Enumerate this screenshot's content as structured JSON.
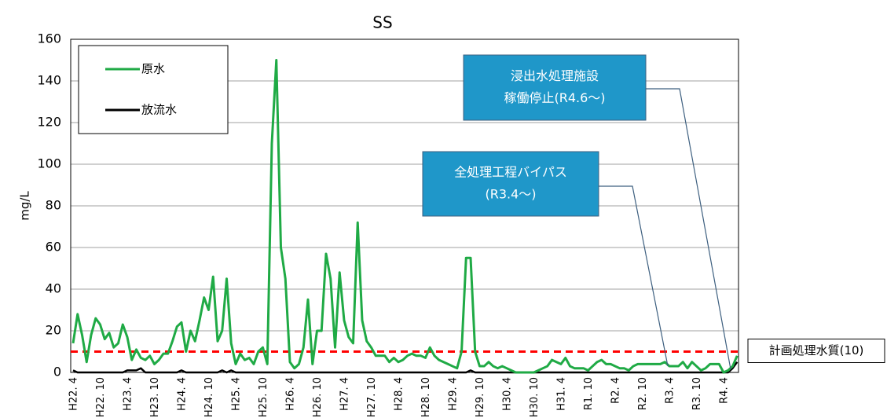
{
  "chart_data": {
    "type": "line",
    "title": "SS",
    "ylabel": "mg/L",
    "categories": [
      "H22. 4",
      null,
      null,
      null,
      null,
      null,
      "H22. 10",
      null,
      null,
      null,
      null,
      null,
      "H23. 4",
      null,
      null,
      null,
      null,
      null,
      "H23. 10",
      null,
      null,
      null,
      null,
      null,
      "H24. 4",
      null,
      null,
      null,
      null,
      null,
      "H24. 10",
      null,
      null,
      null,
      null,
      null,
      "H25. 4",
      null,
      null,
      null,
      null,
      null,
      "H25. 10",
      null,
      null,
      null,
      null,
      null,
      "H26. 4",
      null,
      null,
      null,
      null,
      null,
      "H26. 10",
      null,
      null,
      null,
      null,
      null,
      "H27. 4",
      null,
      null,
      null,
      null,
      null,
      "H27. 10",
      null,
      null,
      null,
      null,
      null,
      "H28. 4",
      null,
      null,
      null,
      null,
      null,
      "H28. 10",
      null,
      null,
      null,
      null,
      null,
      "H29. 4",
      null,
      null,
      null,
      null,
      null,
      "H29. 10",
      null,
      null,
      null,
      null,
      null,
      "H30. 4",
      null,
      null,
      null,
      null,
      null,
      "H30. 10",
      null,
      null,
      null,
      null,
      null,
      "H31. 4",
      null,
      null,
      null,
      null,
      null,
      "R1. 10",
      null,
      null,
      null,
      null,
      null,
      "R2. 4",
      null,
      null,
      null,
      null,
      null,
      "R2. 10",
      null,
      null,
      null,
      null,
      null,
      "R3. 4",
      null,
      null,
      null,
      null,
      null,
      "R3. 10",
      null,
      null,
      null,
      null,
      null,
      "R4. 4",
      null,
      null,
      null
    ],
    "series": [
      {
        "name": "原水",
        "color": "#1faa45",
        "values": [
          14,
          28,
          18,
          5,
          18,
          26,
          23,
          16,
          19,
          12,
          14,
          23,
          17,
          6,
          11,
          7,
          6,
          8,
          4,
          6,
          9,
          9,
          15,
          22,
          24,
          10,
          20,
          15,
          25,
          36,
          30,
          46,
          15,
          20,
          45,
          14,
          4,
          9,
          6,
          7,
          4,
          10,
          12,
          4,
          110,
          150,
          60,
          45,
          5,
          2,
          4,
          12,
          35,
          4,
          20,
          20,
          57,
          45,
          12,
          48,
          25,
          17,
          14,
          72,
          25,
          15,
          12,
          8,
          8,
          8,
          5,
          7,
          5,
          6,
          8,
          9,
          8,
          8,
          7,
          12,
          8,
          6,
          5,
          4,
          3,
          2,
          10,
          55,
          55,
          10,
          3,
          3,
          5,
          3,
          2,
          3,
          2,
          1,
          0,
          0,
          0,
          0,
          0,
          1,
          2,
          3,
          6,
          5,
          4,
          7,
          3,
          2,
          2,
          2,
          1,
          3,
          5,
          6,
          4,
          4,
          3,
          2,
          2,
          1,
          3,
          4,
          4,
          4,
          4,
          4,
          4,
          5,
          3,
          3,
          3,
          5,
          2,
          5,
          3,
          1,
          2,
          4,
          4,
          4,
          0,
          1,
          3,
          8
        ]
      },
      {
        "name": "放流水",
        "color": "#000000",
        "values": [
          1,
          0,
          0,
          0,
          0,
          0,
          0,
          0,
          0,
          0,
          0,
          0,
          1,
          1,
          1,
          2,
          0,
          0,
          0,
          0,
          0,
          0,
          0,
          0,
          1,
          0,
          0,
          0,
          0,
          0,
          0,
          0,
          0,
          1,
          0,
          1,
          0,
          0,
          0,
          0,
          0,
          0,
          0,
          0,
          0,
          0,
          0,
          0,
          0,
          0,
          0,
          0,
          0,
          0,
          0,
          0,
          0,
          0,
          0,
          0,
          0,
          0,
          0,
          0,
          0,
          0,
          0,
          0,
          0,
          0,
          0,
          0,
          0,
          0,
          0,
          0,
          0,
          0,
          0,
          0,
          0,
          0,
          0,
          0,
          0,
          0,
          0,
          0,
          1,
          0,
          0,
          0,
          0,
          0,
          0,
          0,
          0,
          0,
          0,
          0,
          0,
          0,
          0,
          0,
          0,
          0,
          0,
          0,
          0,
          0,
          0,
          0,
          0,
          0,
          0,
          0,
          0,
          0,
          0,
          0,
          0,
          0,
          0,
          0,
          0,
          0,
          0,
          0,
          0,
          0,
          0,
          0,
          0,
          0,
          0,
          0,
          0,
          0,
          0,
          0,
          0,
          0,
          0,
          0,
          0,
          0,
          2,
          5
        ]
      }
    ],
    "ylim": [
      0,
      160
    ],
    "yticks": [
      0,
      20,
      40,
      60,
      80,
      100,
      120,
      140,
      160
    ],
    "grid": true,
    "legend": "upper left",
    "reference_line": {
      "value": 10,
      "label": "計画処理水質(10)",
      "color": "#ff0000"
    },
    "annotations": [
      {
        "lines": [
          "浸出水処理施設",
          "稼働停止(R4.6～)"
        ]
      },
      {
        "lines": [
          "全処理工程バイパス",
          "(R3.4～)"
        ]
      }
    ]
  }
}
